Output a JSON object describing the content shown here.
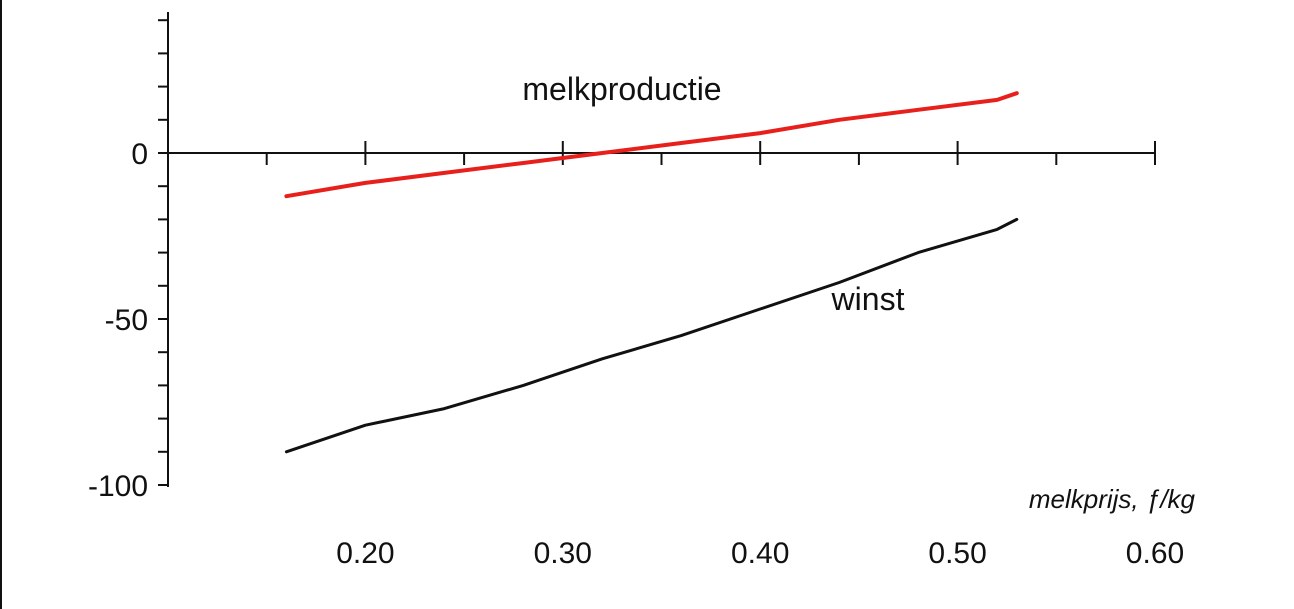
{
  "chart_data": {
    "type": "line",
    "title": "",
    "xlabel": "melkprijs, ƒ/kg",
    "ylabel": "",
    "xlim": [
      0.1,
      0.6
    ],
    "ylim": [
      -100,
      45
    ],
    "x_ticks": [
      0.1,
      0.15,
      0.2,
      0.25,
      0.3,
      0.35,
      0.4,
      0.45,
      0.5,
      0.55,
      0.6
    ],
    "x_tick_labels": [
      {
        "x": 0.2,
        "label": "0.20"
      },
      {
        "x": 0.3,
        "label": "0.30"
      },
      {
        "x": 0.4,
        "label": "0.40"
      },
      {
        "x": 0.5,
        "label": "0.50"
      },
      {
        "x": 0.6,
        "label": "0.60"
      }
    ],
    "y_ticks": [
      -100,
      -90,
      -80,
      -70,
      -60,
      -50,
      -40,
      -30,
      -20,
      -10,
      0,
      10,
      20,
      30,
      40
    ],
    "y_tick_labels": [
      {
        "y": 0,
        "label": "0"
      },
      {
        "y": -50,
        "label": "-50"
      },
      {
        "y": -100,
        "label": "-100"
      }
    ],
    "grid": false,
    "series": [
      {
        "name": "melkproductie",
        "color": "#e8201c",
        "x": [
          0.16,
          0.2,
          0.24,
          0.28,
          0.32,
          0.36,
          0.4,
          0.44,
          0.48,
          0.52,
          0.53
        ],
        "y": [
          -13,
          -9,
          -6,
          -3,
          0,
          3,
          6,
          10,
          13,
          16,
          18
        ]
      },
      {
        "name": "winst",
        "color": "#111111",
        "x": [
          0.16,
          0.2,
          0.24,
          0.28,
          0.32,
          0.36,
          0.4,
          0.44,
          0.48,
          0.52,
          0.53
        ],
        "y": [
          -90,
          -82,
          -77,
          -70,
          -62,
          -55,
          -47,
          -39,
          -30,
          -23,
          -20
        ]
      }
    ]
  }
}
